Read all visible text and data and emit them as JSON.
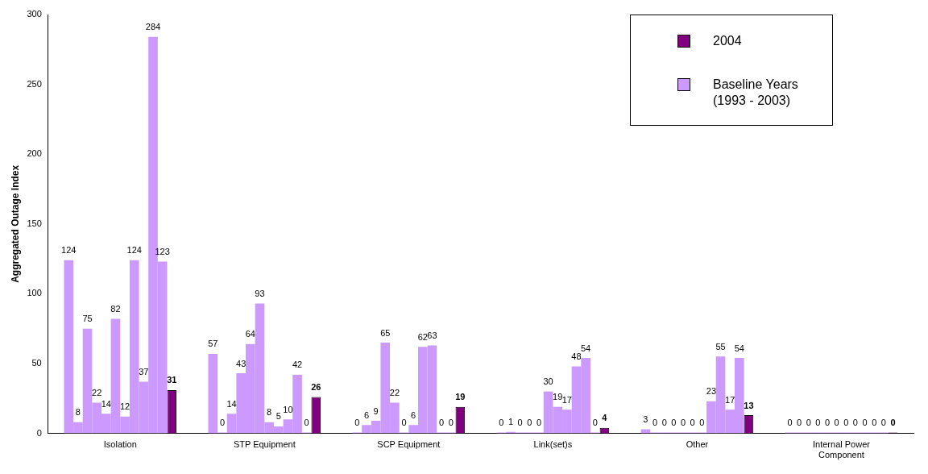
{
  "chart_data": {
    "type": "bar",
    "ylabel": "Aggregated Outage Index",
    "categories": [
      "Isolation",
      "STP Equipment",
      "SCP Equipment",
      "Link(set)s",
      "Other",
      "Internal Power Component"
    ],
    "series": [
      {
        "name": "Baseline Years (1993 - 2003)",
        "color": "#cc99ff",
        "values": [
          124,
          57,
          0,
          0,
          3,
          0
        ]
      },
      {
        "color": "#cc99ff",
        "values": [
          8,
          0,
          6,
          1,
          0,
          0
        ]
      },
      {
        "color": "#cc99ff",
        "values": [
          75,
          14,
          9,
          0,
          0,
          0
        ]
      },
      {
        "color": "#cc99ff",
        "values": [
          22,
          43,
          65,
          0,
          0,
          0
        ]
      },
      {
        "color": "#cc99ff",
        "values": [
          14,
          64,
          22,
          0,
          0,
          0
        ]
      },
      {
        "color": "#cc99ff",
        "values": [
          82,
          93,
          0,
          30,
          0,
          0
        ]
      },
      {
        "color": "#cc99ff",
        "values": [
          12,
          8,
          6,
          19,
          0,
          0
        ]
      },
      {
        "color": "#cc99ff",
        "values": [
          124,
          5,
          62,
          17,
          23,
          0
        ]
      },
      {
        "color": "#cc99ff",
        "values": [
          37,
          10,
          63,
          48,
          55,
          0
        ]
      },
      {
        "color": "#cc99ff",
        "values": [
          284,
          42,
          0,
          54,
          17,
          0
        ]
      },
      {
        "color": "#cc99ff",
        "values": [
          123,
          0,
          0,
          0,
          54,
          0
        ]
      },
      {
        "name": "2004",
        "color": "#800080",
        "values": [
          31,
          26,
          19,
          4,
          13,
          0
        ]
      }
    ],
    "ylim": [
      0,
      300
    ],
    "yticks": [
      0,
      50,
      100,
      150,
      200,
      250,
      300
    ],
    "grid": false,
    "legend": "top right",
    "data_labels": true
  }
}
